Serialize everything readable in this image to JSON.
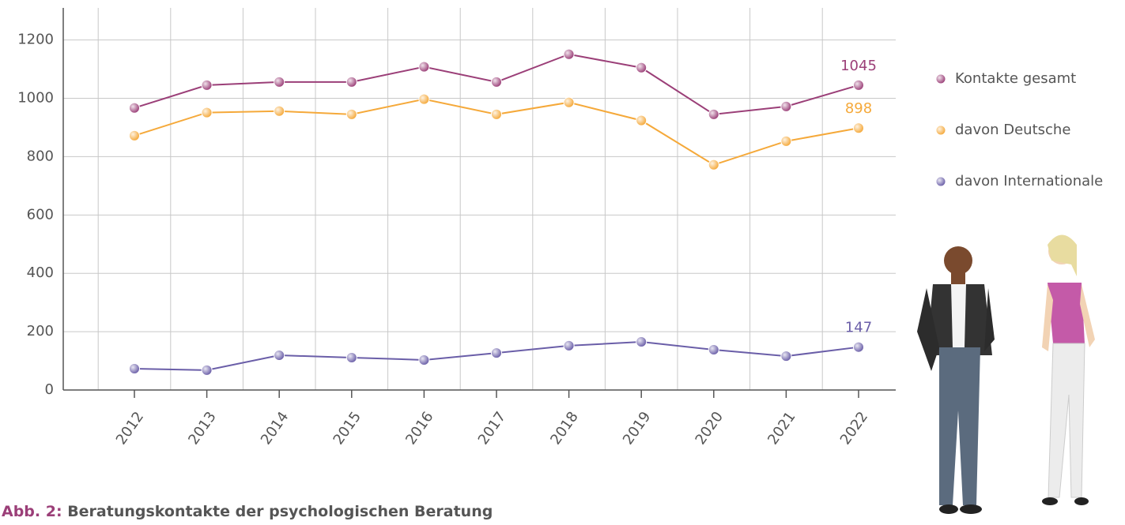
{
  "chart_data": {
    "type": "line",
    "figure_label": "Abb. 2:",
    "title": "Beratungskontakte der psychologischen Beratung",
    "categories": [
      "2012",
      "2013",
      "2014",
      "2015",
      "2016",
      "2017",
      "2018",
      "2019",
      "2020",
      "2021",
      "2022"
    ],
    "series": [
      {
        "name": "Kontakte gesamt",
        "color": "#9b3f78",
        "values": [
          967,
          1045,
          1056,
          1056,
          1108,
          1056,
          1151,
          1105,
          945,
          972,
          1045
        ]
      },
      {
        "name": "davon Deutsche",
        "color": "#f5a93a",
        "values": [
          872,
          951,
          956,
          945,
          997,
          945,
          986,
          924,
          772,
          853,
          898
        ]
      },
      {
        "name": "davon Internationale",
        "color": "#6a5ea8",
        "values": [
          73,
          68,
          119,
          111,
          103,
          127,
          152,
          165,
          138,
          116,
          147
        ]
      }
    ],
    "ylim": [
      0,
      1310
    ],
    "yticks": [
      0,
      200,
      400,
      600,
      800,
      1000,
      1200
    ],
    "grid": true
  }
}
